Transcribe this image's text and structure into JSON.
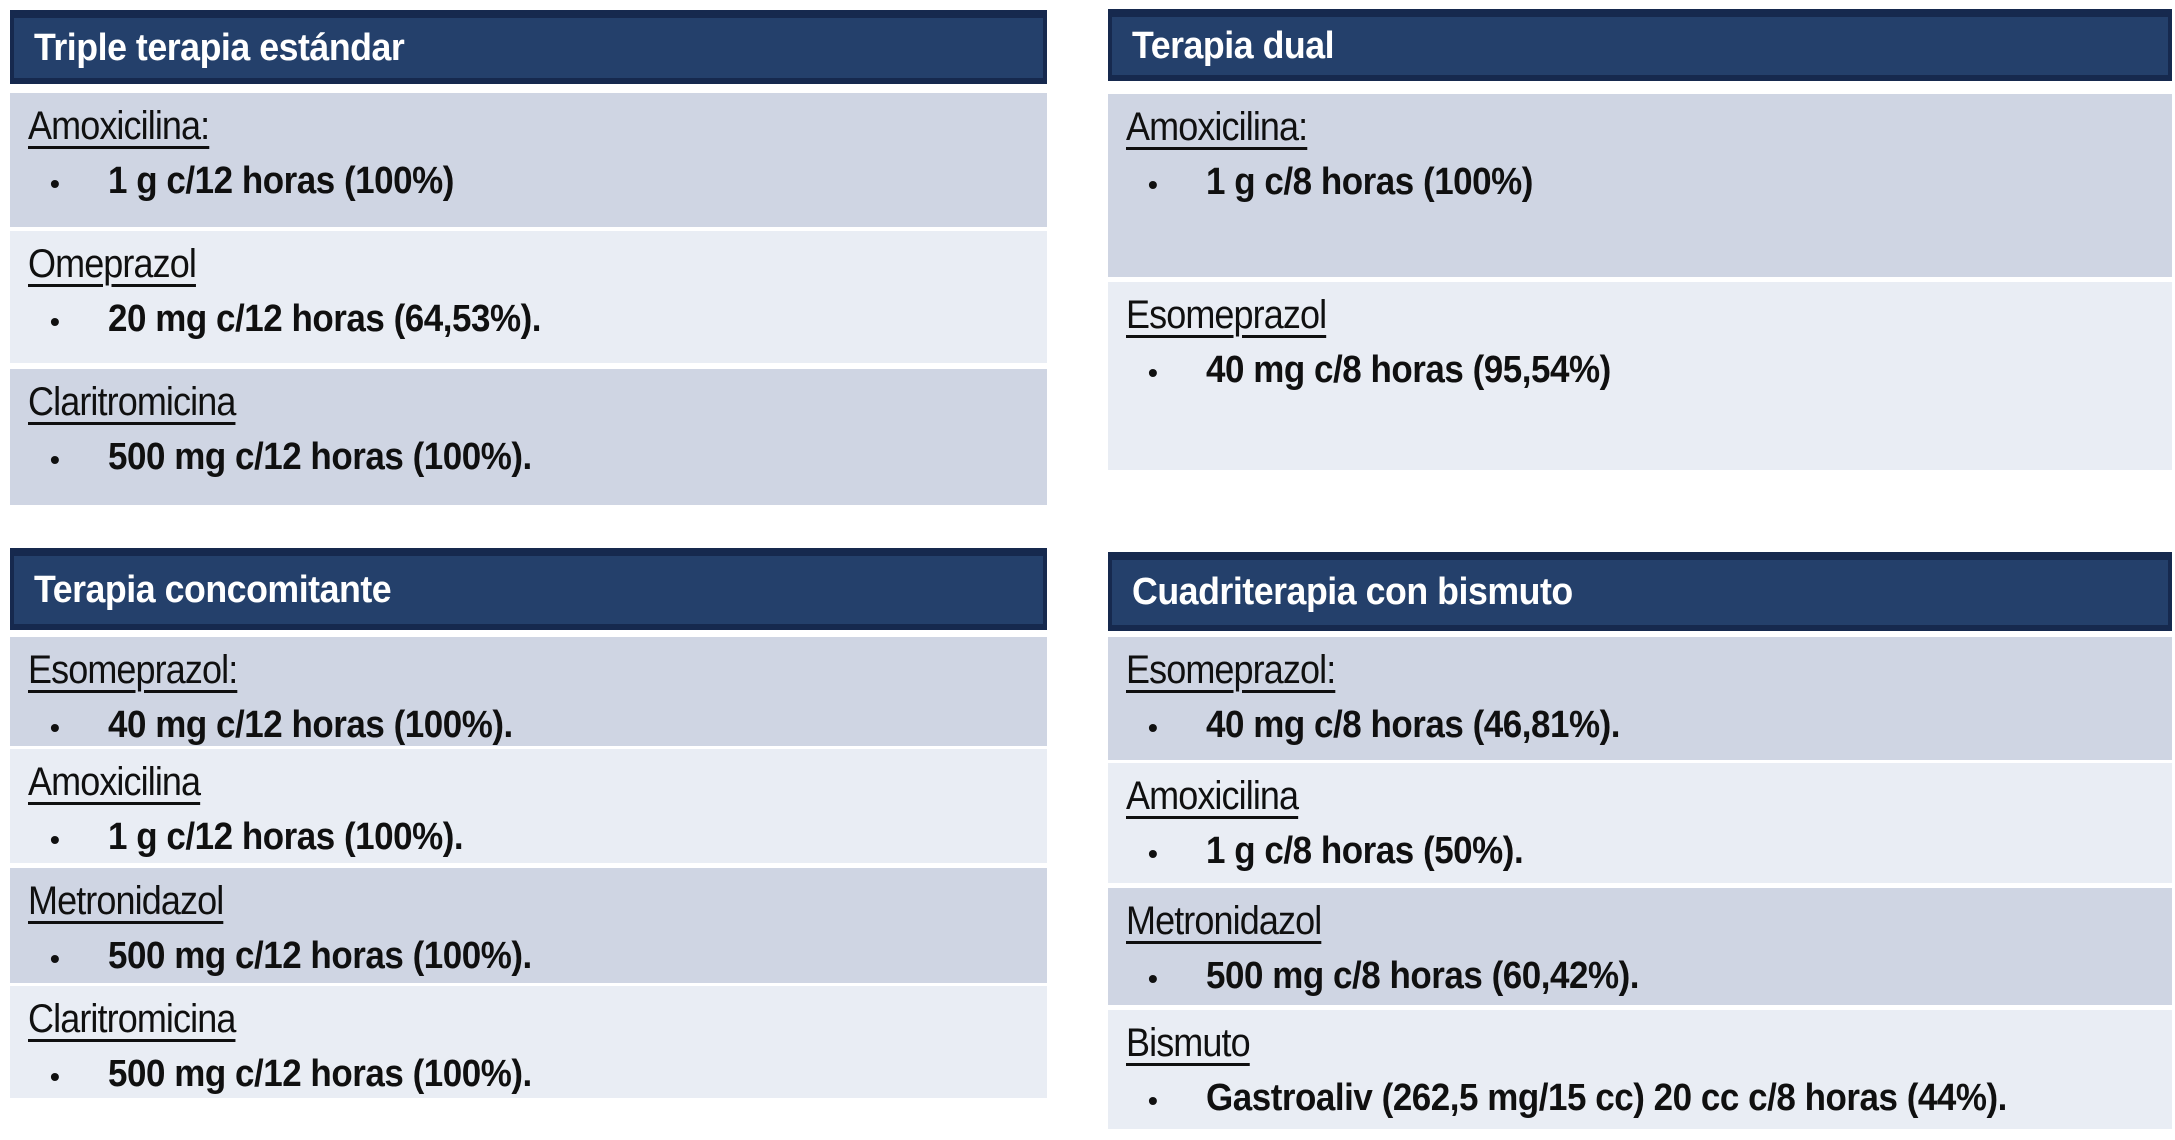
{
  "bullet_char": "•",
  "colors": {
    "canvas_bg": "#FFFFFF",
    "header_bg": "#24406B",
    "header_border": "#16294E",
    "header_text": "#FFFFFF",
    "row_dark": "#CFD5E3",
    "row_light": "#E9EDF4",
    "text": "#101010"
  },
  "panels": [
    {
      "title": "Triple terapia estándar",
      "rows": [
        {
          "drug": "Amoxicilina:",
          "dose": "1 g c/12 horas (100%)"
        },
        {
          "drug": "Omeprazol",
          "dose": "20 mg c/12 horas (64,53%)."
        },
        {
          "drug": "Claritromicina",
          "dose": "500 mg c/12 horas (100%)."
        }
      ]
    },
    {
      "title": "Terapia dual",
      "rows": [
        {
          "drug": "Amoxicilina:",
          "dose": "1 g c/8 horas (100%)"
        },
        {
          "drug": "Esomeprazol",
          "dose": "40 mg c/8 horas (95,54%)"
        }
      ]
    },
    {
      "title": "Terapia concomitante",
      "rows": [
        {
          "drug": "Esomeprazol:",
          "dose": "40 mg c/12 horas (100%)."
        },
        {
          "drug": "Amoxicilina",
          "dose": "1 g c/12 horas (100%)."
        },
        {
          "drug": "Metronidazol",
          "dose": "500 mg c/12 horas (100%)."
        },
        {
          "drug": "Claritromicina",
          "dose": "500 mg c/12 horas (100%)."
        }
      ]
    },
    {
      "title": "Cuadriterapia con bismuto",
      "rows": [
        {
          "drug": "Esomeprazol:",
          "dose": "40 mg c/8 horas (46,81%)."
        },
        {
          "drug": "Amoxicilina",
          "dose": "1 g c/8 horas (50%)."
        },
        {
          "drug": "Metronidazol",
          "dose": "500 mg c/8 horas (60,42%)."
        },
        {
          "drug": "Bismuto",
          "dose": "Gastroaliv (262,5 mg/15 cc) 20 cc c/8 horas (44%)."
        }
      ]
    }
  ]
}
